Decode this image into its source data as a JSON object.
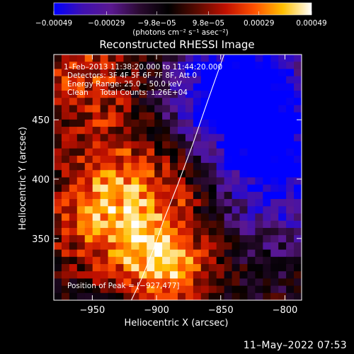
{
  "chart_data": {
    "type": "heatmap",
    "title": "Reconstructed RHESSI Image",
    "xlabel": "Heliocentric X (arcsec)",
    "ylabel": "Heliocentric Y (arcsec)",
    "xlim": [
      -980,
      -787
    ],
    "ylim": [
      298,
      505
    ],
    "x_ticks": [
      {
        "value": -950,
        "label": "−950"
      },
      {
        "value": -900,
        "label": "−900"
      },
      {
        "value": -850,
        "label": "−850"
      },
      {
        "value": -800,
        "label": "−800"
      }
    ],
    "y_ticks": [
      {
        "value": 350,
        "label": "350"
      },
      {
        "value": 400,
        "label": "400"
      },
      {
        "value": 450,
        "label": "450"
      }
    ],
    "colorbar": {
      "min": -0.00049,
      "max": 0.00049,
      "tick_values": [
        -0.00049,
        -0.00029,
        -9.8e-05,
        9.8e-05,
        0.00029,
        0.00049
      ],
      "tick_labels": [
        "−0.00049",
        "−0.00029",
        "−9.8e−05",
        "9.8e−05",
        "0.00029",
        "0.00049"
      ],
      "unit_label": "(photons cm⁻² s⁻¹ asec⁻²)",
      "colors": [
        "#0000ff",
        "#3f10b0",
        "#5a1890",
        "#2a0a30",
        "#000000",
        "#5a0a00",
        "#c01000",
        "#ff5000",
        "#ffc000",
        "#ffffff"
      ]
    },
    "annotations": {
      "time_range": "1–Feb–2013 11:38:20.000 to 11:44:20.000",
      "detectors": "Detectors: 3F 4F 5F 6F 7F 8F, Att 0",
      "energy_range": "Energy Range: 25.0 – 50.0 keV",
      "method": "Clean     Total Counts: 1.26E+04",
      "peak": "Position of Peak = [−927,477]"
    },
    "grid": false,
    "limb_line": {
      "x": [
        -919.6,
        -911.7,
        -902.0,
        -894.2,
        -883.6,
        -871.9,
        -859.8,
        -847.4,
        -835.6
      ],
      "y": [
        298,
        316,
        342,
        366,
        395,
        429,
        467,
        505,
        540
      ]
    },
    "intensity_model": {
      "description_values": "normalized intensity on a 32x34 grid, -1 (min) to +1 (max)",
      "nx": 32,
      "ny": 34,
      "background": -0.15
    }
  },
  "footer": {
    "date": "11–May–2022 07:53"
  }
}
